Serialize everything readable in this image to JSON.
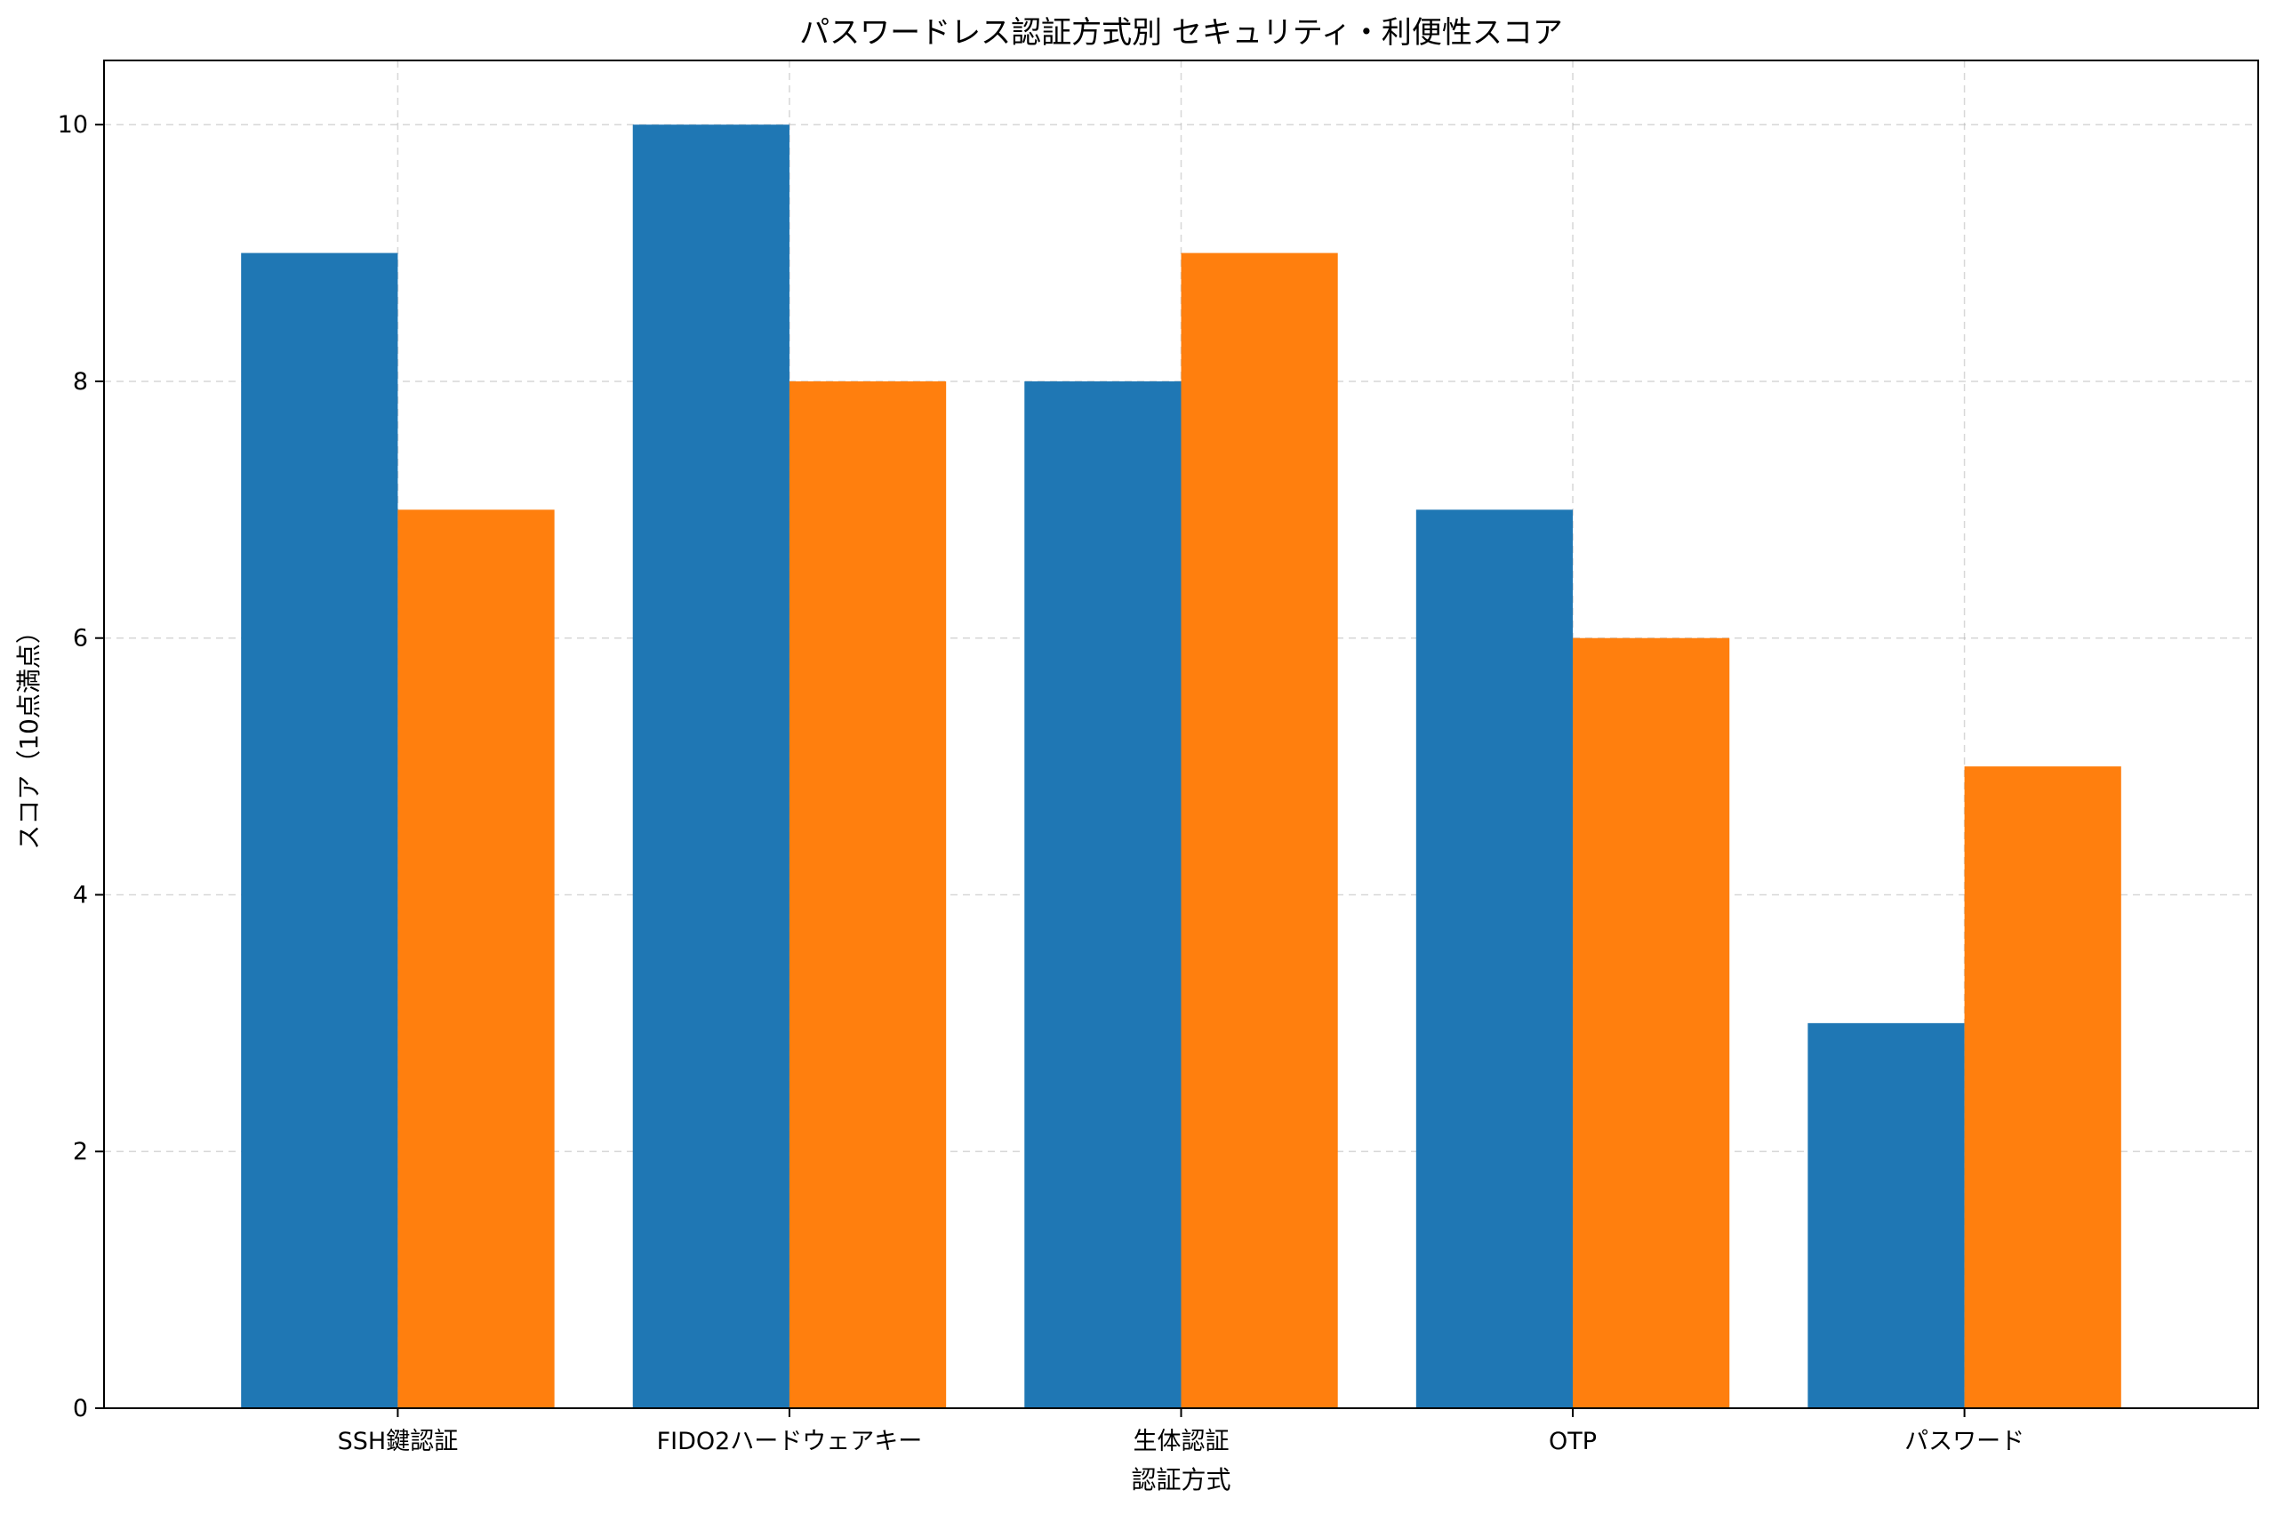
{
  "chart_data": {
    "type": "bar",
    "title": "パスワードレス認証方式別 セキュリティ・利便性スコア",
    "xlabel": "認証方式",
    "ylabel": "スコア（10点満点）",
    "categories": [
      "SSH鍵認証",
      "FIDO2ハードウェアキー",
      "生体認証",
      "OTP",
      "パスワード"
    ],
    "series": [
      {
        "values": [
          9,
          10,
          8,
          7,
          3
        ],
        "color": "#1f77b4"
      },
      {
        "values": [
          7,
          8,
          9,
          6,
          5
        ],
        "color": "#ff7f0e"
      }
    ],
    "ylim": [
      0,
      10.5
    ],
    "yticks": [
      0,
      2,
      4,
      6,
      8,
      10
    ],
    "grid": true,
    "legend": "none"
  }
}
